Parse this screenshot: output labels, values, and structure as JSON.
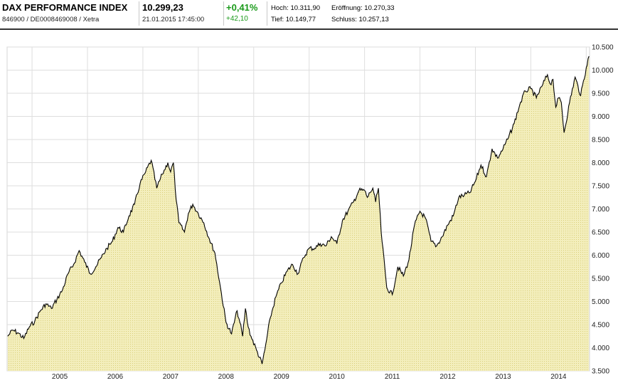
{
  "header": {
    "title": "DAX PERFORMANCE INDEX",
    "identifier": "846900 / DE0008469008 / Xetra",
    "price": "10.299,23",
    "datetime": "21.01.2015 17:45:00",
    "change_pct": "+0,41%",
    "change_abs": "+42,10",
    "high": "Hoch: 10.311,90",
    "open": "Eröffnung: 10.270,33",
    "low": "Tief: 10.149,77",
    "close": "Schluss: 10.257,13",
    "positive_color": "#1a9a1a"
  },
  "chart_data": {
    "type": "area",
    "title": "",
    "xlabel": "",
    "ylabel": "",
    "x_tick_labels": [
      "2005",
      "2006",
      "2007",
      "2008",
      "2009",
      "2010",
      "2011",
      "2012",
      "2013",
      "2014"
    ],
    "y_tick_labels": [
      "3.500",
      "4.000",
      "4.500",
      "5.000",
      "5.500",
      "6.000",
      "6.500",
      "7.000",
      "7.500",
      "8.000",
      "8.500",
      "9.000",
      "9.500",
      "10.000",
      "10.500"
    ],
    "ylim": [
      3500,
      10500
    ],
    "xlim": [
      2004.55,
      2015.06
    ],
    "grid": true,
    "fill_color": "#eee8a8",
    "line_color": "#000000",
    "series": [
      {
        "x": [
          2004.56,
          2004.65,
          2004.75,
          2004.85,
          2004.95,
          2005.05,
          2005.15,
          2005.25,
          2005.35,
          2005.45,
          2005.55,
          2005.65,
          2005.75,
          2005.85,
          2005.95,
          2006.05,
          2006.15,
          2006.25,
          2006.35,
          2006.45,
          2006.55,
          2006.65,
          2006.75,
          2006.85,
          2006.95,
          2007.05,
          2007.15,
          2007.25,
          2007.35,
          2007.45,
          2007.5,
          2007.55,
          2007.6,
          2007.65,
          2007.75,
          2007.82,
          2007.9,
          2008.0,
          2008.1,
          2008.2,
          2008.3,
          2008.4,
          2008.5,
          2008.6,
          2008.7,
          2008.75,
          2008.8,
          2008.85,
          2008.9,
          2008.95,
          2009.05,
          2009.15,
          2009.2,
          2009.3,
          2009.4,
          2009.5,
          2009.6,
          2009.7,
          2009.8,
          2009.9,
          2010.0,
          2010.1,
          2010.2,
          2010.3,
          2010.4,
          2010.5,
          2010.6,
          2010.7,
          2010.8,
          2010.9,
          2011.0,
          2011.05,
          2011.1,
          2011.15,
          2011.2,
          2011.25,
          2011.3,
          2011.4,
          2011.5,
          2011.6,
          2011.7,
          2011.8,
          2011.9,
          2012.0,
          2012.1,
          2012.2,
          2012.3,
          2012.4,
          2012.5,
          2012.6,
          2012.7,
          2012.8,
          2012.9,
          2013.0,
          2013.1,
          2013.2,
          2013.3,
          2013.4,
          2013.5,
          2013.6,
          2013.7,
          2013.8,
          2013.9,
          2014.0,
          2014.1,
          2014.2,
          2014.3,
          2014.35,
          2014.4,
          2014.45,
          2014.5,
          2014.55,
          2014.6,
          2014.7,
          2014.8,
          2014.9,
          2015.0,
          2015.05
        ],
        "y": [
          4250,
          4380,
          4320,
          4200,
          4450,
          4580,
          4800,
          4950,
          4850,
          5050,
          5250,
          5600,
          5800,
          6100,
          5850,
          5600,
          5750,
          5950,
          6150,
          6300,
          6600,
          6500,
          6850,
          7100,
          7550,
          7800,
          8050,
          7450,
          7750,
          8000,
          7800,
          8000,
          7200,
          6700,
          6500,
          6900,
          7100,
          6900,
          6700,
          6350,
          6050,
          5300,
          4550,
          4300,
          4800,
          4550,
          4250,
          4850,
          4450,
          4250,
          3950,
          3650,
          3950,
          4650,
          5100,
          5400,
          5650,
          5800,
          5600,
          5950,
          6150,
          6150,
          6250,
          6200,
          6400,
          6250,
          6750,
          6950,
          7150,
          7400,
          7400,
          7250,
          7350,
          7450,
          7150,
          7450,
          6500,
          5300,
          5150,
          5750,
          5550,
          5900,
          6650,
          6950,
          6800,
          6300,
          6200,
          6400,
          6650,
          6850,
          7250,
          7300,
          7350,
          7600,
          7950,
          7700,
          8300,
          8100,
          8300,
          8550,
          8850,
          9250,
          9550,
          9600,
          9400,
          9650,
          9900,
          9700,
          9800,
          9200,
          9400,
          9300,
          8650,
          9300,
          9850,
          9450,
          10050,
          10300
        ]
      }
    ]
  }
}
